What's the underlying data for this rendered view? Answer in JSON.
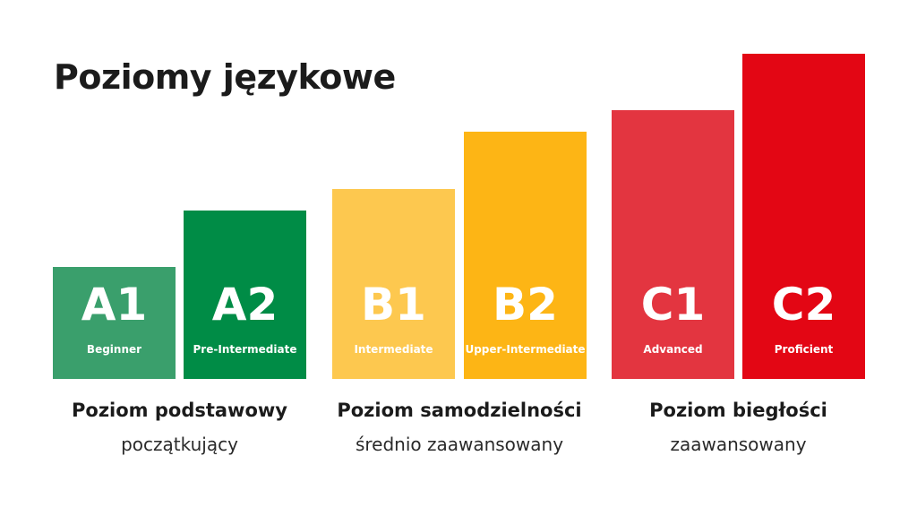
{
  "title": "Poziomy językowe",
  "levels": [
    {
      "code": "A1",
      "label": "Beginner",
      "color": "#3a9f6c",
      "relative_height": 125
    },
    {
      "code": "A2",
      "label": "Pre-Intermediate",
      "color": "#008c46",
      "relative_height": 188
    },
    {
      "code": "B1",
      "label": "Intermediate",
      "color": "#fdc84f",
      "relative_height": 212
    },
    {
      "code": "B2",
      "label": "Upper-Intermediate",
      "color": "#fdb515",
      "relative_height": 276
    },
    {
      "code": "C1",
      "label": "Advanced",
      "color": "#e33540",
      "relative_height": 300
    },
    {
      "code": "C2",
      "label": "Proficient",
      "color": "#e30614",
      "relative_height": 363
    }
  ],
  "groups": [
    {
      "title": "Poziom podstawowy",
      "subtitle": "początkujący"
    },
    {
      "title": "Poziom samodzielności",
      "subtitle": "średnio zaawansowany"
    },
    {
      "title": "Poziom biegłości",
      "subtitle": "zaawansowany"
    }
  ]
}
